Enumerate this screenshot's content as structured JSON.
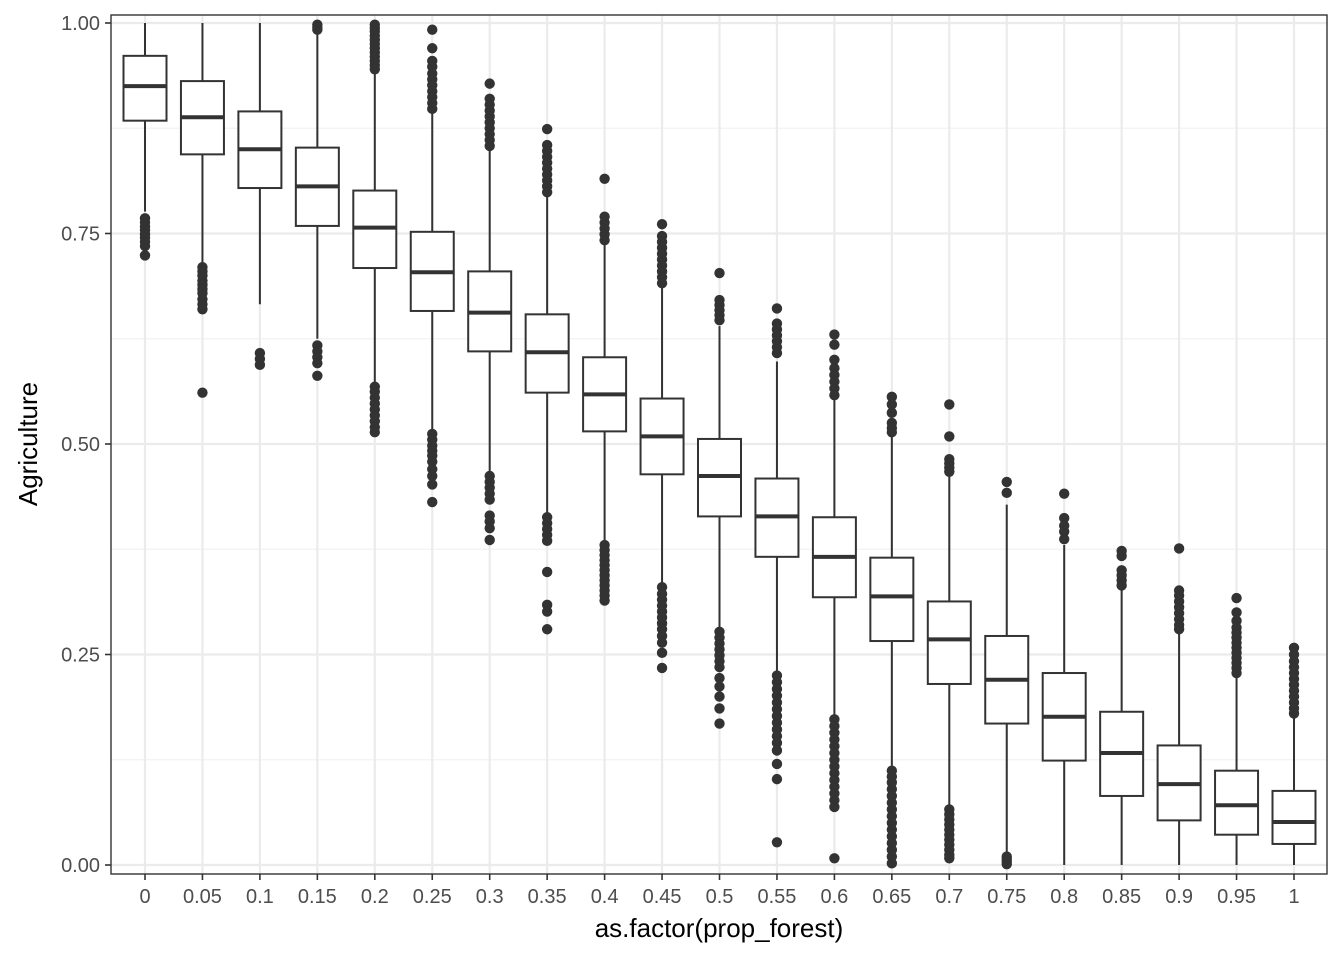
{
  "chart_data": {
    "type": "boxplot",
    "xlabel": "as.factor(prop_forest)",
    "ylabel": "Agriculture",
    "ylim": [
      0,
      1
    ],
    "yticks": [
      "0.00",
      "0.25",
      "0.50",
      "0.75",
      "1.00"
    ],
    "y_tick_values": [
      0,
      0.25,
      0.5,
      0.75,
      1
    ],
    "grid": true,
    "categories": [
      "0",
      "0.05",
      "0.1",
      "0.15",
      "0.2",
      "0.25",
      "0.3",
      "0.35",
      "0.4",
      "0.45",
      "0.5",
      "0.55",
      "0.6",
      "0.65",
      "0.7",
      "0.75",
      "0.8",
      "0.85",
      "0.9",
      "0.95",
      "1"
    ],
    "boxes": [
      {
        "category": "0",
        "lower_whisker": 0.776,
        "q1": 0.884,
        "median": 0.925,
        "q3": 0.961,
        "upper_whisker": 1.0,
        "outliers": [
          0.768,
          0.763,
          0.758,
          0.754,
          0.749,
          0.745,
          0.74,
          0.735,
          0.724
        ]
      },
      {
        "category": "0.05",
        "lower_whisker": 0.713,
        "q1": 0.844,
        "median": 0.888,
        "q3": 0.931,
        "upper_whisker": 1.0,
        "outliers": [
          0.71,
          0.705,
          0.7,
          0.694,
          0.689,
          0.684,
          0.679,
          0.672,
          0.666,
          0.66,
          0.561
        ]
      },
      {
        "category": "0.1",
        "lower_whisker": 0.666,
        "q1": 0.804,
        "median": 0.85,
        "q3": 0.895,
        "upper_whisker": 1.0,
        "outliers": [
          0.608,
          0.601,
          0.594
        ]
      },
      {
        "category": "0.15",
        "lower_whisker": 0.625,
        "q1": 0.759,
        "median": 0.806,
        "q3": 0.852,
        "upper_whisker": 0.99,
        "outliers": [
          0.998,
          0.995,
          0.992,
          0.617,
          0.61,
          0.603,
          0.596,
          0.581
        ]
      },
      {
        "category": "0.2",
        "lower_whisker": 0.573,
        "q1": 0.709,
        "median": 0.757,
        "q3": 0.801,
        "upper_whisker": 0.94,
        "outliers": [
          0.998,
          0.994,
          0.99,
          0.985,
          0.98,
          0.975,
          0.97,
          0.965,
          0.96,
          0.955,
          0.95,
          0.945,
          0.568,
          0.562,
          0.555,
          0.548,
          0.541,
          0.534,
          0.527,
          0.52,
          0.514
        ]
      },
      {
        "category": "0.25",
        "lower_whisker": 0.515,
        "q1": 0.658,
        "median": 0.704,
        "q3": 0.752,
        "upper_whisker": 0.893,
        "outliers": [
          0.992,
          0.97,
          0.955,
          0.948,
          0.94,
          0.933,
          0.926,
          0.919,
          0.912,
          0.905,
          0.898,
          0.512,
          0.505,
          0.498,
          0.492,
          0.486,
          0.479,
          0.47,
          0.462,
          0.452,
          0.431
        ]
      },
      {
        "category": "0.3",
        "lower_whisker": 0.466,
        "q1": 0.61,
        "median": 0.656,
        "q3": 0.705,
        "upper_whisker": 0.85,
        "outliers": [
          0.928,
          0.91,
          0.903,
          0.896,
          0.889,
          0.882,
          0.875,
          0.868,
          0.861,
          0.854,
          0.462,
          0.455,
          0.448,
          0.441,
          0.434,
          0.415,
          0.408,
          0.4,
          0.386
        ]
      },
      {
        "category": "0.35",
        "lower_whisker": 0.418,
        "q1": 0.561,
        "median": 0.609,
        "q3": 0.654,
        "upper_whisker": 0.795,
        "outliers": [
          0.874,
          0.855,
          0.848,
          0.841,
          0.834,
          0.827,
          0.82,
          0.813,
          0.806,
          0.799,
          0.413,
          0.406,
          0.399,
          0.392,
          0.385,
          0.348,
          0.309,
          0.301,
          0.28
        ]
      },
      {
        "category": "0.4",
        "lower_whisker": 0.385,
        "q1": 0.515,
        "median": 0.559,
        "q3": 0.603,
        "upper_whisker": 0.74,
        "outliers": [
          0.815,
          0.77,
          0.763,
          0.756,
          0.749,
          0.742,
          0.38,
          0.374,
          0.368,
          0.362,
          0.356,
          0.35,
          0.344,
          0.338,
          0.332,
          0.326,
          0.32,
          0.314
        ]
      },
      {
        "category": "0.45",
        "lower_whisker": 0.333,
        "q1": 0.464,
        "median": 0.509,
        "q3": 0.554,
        "upper_whisker": 0.688,
        "outliers": [
          0.761,
          0.747,
          0.74,
          0.733,
          0.726,
          0.719,
          0.712,
          0.705,
          0.698,
          0.691,
          0.33,
          0.322,
          0.315,
          0.308,
          0.301,
          0.294,
          0.287,
          0.28,
          0.272,
          0.264,
          0.252,
          0.234
        ]
      },
      {
        "category": "0.5",
        "lower_whisker": 0.28,
        "q1": 0.414,
        "median": 0.462,
        "q3": 0.506,
        "upper_whisker": 0.64,
        "outliers": [
          0.703,
          0.671,
          0.665,
          0.659,
          0.653,
          0.647,
          0.277,
          0.27,
          0.263,
          0.256,
          0.249,
          0.242,
          0.235,
          0.222,
          0.212,
          0.2,
          0.186,
          0.168
        ]
      },
      {
        "category": "0.55",
        "lower_whisker": 0.23,
        "q1": 0.366,
        "median": 0.414,
        "q3": 0.459,
        "upper_whisker": 0.598,
        "outliers": [
          0.661,
          0.643,
          0.636,
          0.629,
          0.622,
          0.615,
          0.608,
          0.225,
          0.217,
          0.209,
          0.201,
          0.193,
          0.185,
          0.177,
          0.169,
          0.161,
          0.153,
          0.145,
          0.136,
          0.12,
          0.102,
          0.027
        ]
      },
      {
        "category": "0.6",
        "lower_whisker": 0.178,
        "q1": 0.318,
        "median": 0.366,
        "q3": 0.413,
        "upper_whisker": 0.553,
        "outliers": [
          0.63,
          0.618,
          0.6,
          0.59,
          0.582,
          0.574,
          0.566,
          0.558,
          0.173,
          0.165,
          0.157,
          0.149,
          0.141,
          0.133,
          0.125,
          0.117,
          0.109,
          0.101,
          0.093,
          0.085,
          0.077,
          0.069,
          0.008
        ]
      },
      {
        "category": "0.65",
        "lower_whisker": 0.118,
        "q1": 0.266,
        "median": 0.319,
        "q3": 0.365,
        "upper_whisker": 0.51,
        "outliers": [
          0.556,
          0.547,
          0.537,
          0.525,
          0.519,
          0.514,
          0.112,
          0.105,
          0.098,
          0.09,
          0.082,
          0.074,
          0.066,
          0.058,
          0.05,
          0.042,
          0.034,
          0.026,
          0.018,
          0.01,
          0.002
        ]
      },
      {
        "category": "0.7",
        "lower_whisker": 0.07,
        "q1": 0.215,
        "median": 0.268,
        "q3": 0.313,
        "upper_whisker": 0.465,
        "outliers": [
          0.547,
          0.509,
          0.482,
          0.477,
          0.472,
          0.467,
          0.066,
          0.06,
          0.054,
          0.048,
          0.042,
          0.036,
          0.03,
          0.024,
          0.018,
          0.012,
          0.008
        ]
      },
      {
        "category": "0.75",
        "lower_whisker": 0.012,
        "q1": 0.168,
        "median": 0.22,
        "q3": 0.272,
        "upper_whisker": 0.428,
        "outliers": [
          0.455,
          0.442,
          0.01,
          0.007,
          0.004,
          0.001
        ]
      },
      {
        "category": "0.8",
        "lower_whisker": 0.0,
        "q1": 0.124,
        "median": 0.176,
        "q3": 0.228,
        "upper_whisker": 0.38,
        "outliers": [
          0.441,
          0.412,
          0.403,
          0.396,
          0.387
        ]
      },
      {
        "category": "0.85",
        "lower_whisker": 0.0,
        "q1": 0.082,
        "median": 0.133,
        "q3": 0.182,
        "upper_whisker": 0.33,
        "outliers": [
          0.373,
          0.367,
          0.35,
          0.344,
          0.338,
          0.332
        ]
      },
      {
        "category": "0.9",
        "lower_whisker": 0.0,
        "q1": 0.053,
        "median": 0.096,
        "q3": 0.142,
        "upper_whisker": 0.275,
        "outliers": [
          0.376,
          0.326,
          0.32,
          0.313,
          0.306,
          0.299,
          0.292,
          0.285,
          0.28
        ]
      },
      {
        "category": "0.95",
        "lower_whisker": 0.0,
        "q1": 0.036,
        "median": 0.071,
        "q3": 0.112,
        "upper_whisker": 0.225,
        "outliers": [
          0.317,
          0.3,
          0.29,
          0.282,
          0.276,
          0.27,
          0.264,
          0.258,
          0.252,
          0.246,
          0.24,
          0.234,
          0.228
        ]
      },
      {
        "category": "1",
        "lower_whisker": 0.0,
        "q1": 0.025,
        "median": 0.051,
        "q3": 0.088,
        "upper_whisker": 0.18,
        "outliers": [
          0.258,
          0.25,
          0.242,
          0.235,
          0.228,
          0.221,
          0.214,
          0.207,
          0.2,
          0.193,
          0.186,
          0.18
        ]
      }
    ]
  }
}
